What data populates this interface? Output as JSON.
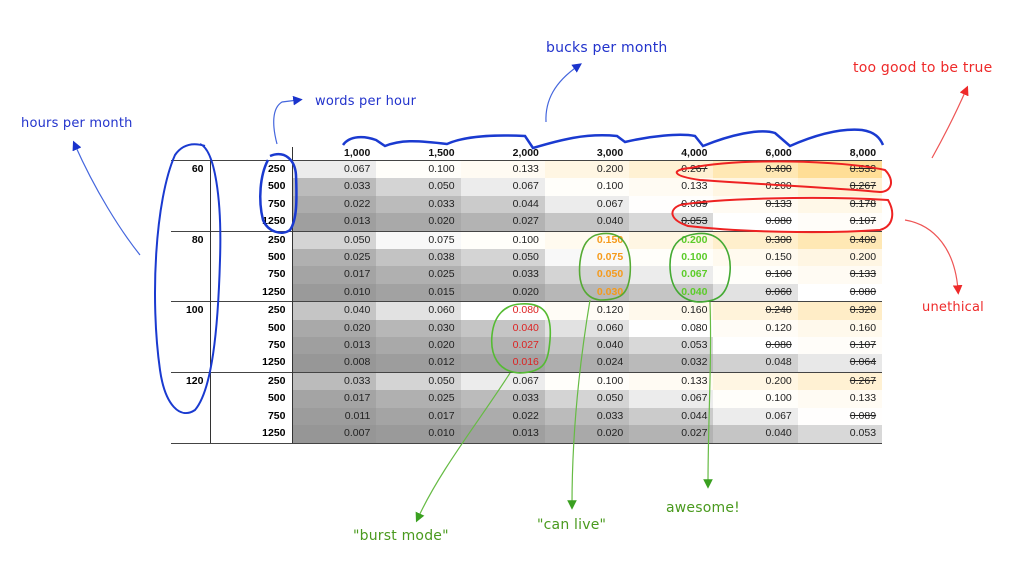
{
  "annotations": {
    "hours_per_month": "hours per month",
    "words_per_hour": "words per hour",
    "bucks_per_month": "bucks per month",
    "too_good": "too good to be true",
    "unethical": "unethical",
    "burst_mode": "\"burst mode\"",
    "can_live": "\"can live\"",
    "awesome": "awesome!"
  },
  "colors": {
    "annotation_blue": "#2233cc",
    "annotation_red": "#ee2a2a",
    "annotation_green": "#4a9a1e",
    "highlight_orange": "#f59a1b",
    "highlight_green": "#5ccc2a",
    "highlight_red": "#dd2222"
  },
  "chart_data": {
    "type": "table",
    "title": "",
    "row_header_1": "hours per month",
    "row_header_2": "words per hour",
    "column_header": "bucks per month",
    "columns": [
      "1,000",
      "1,500",
      "2,000",
      "3,000",
      "4,000",
      "6,000",
      "8,000"
    ],
    "groups": [
      {
        "hours": "60",
        "rows": [
          {
            "words": "250",
            "values": [
              "0.067",
              "0.100",
              "0.133",
              "0.200",
              "0.267",
              "0.400",
              "0.533"
            ]
          },
          {
            "words": "500",
            "values": [
              "0.033",
              "0.050",
              "0.067",
              "0.100",
              "0.133",
              "0.200",
              "0.267"
            ]
          },
          {
            "words": "750",
            "values": [
              "0.022",
              "0.033",
              "0.044",
              "0.067",
              "0.089",
              "0.133",
              "0.178"
            ]
          },
          {
            "words": "1250",
            "values": [
              "0.013",
              "0.020",
              "0.027",
              "0.040",
              "0.053",
              "0.080",
              "0.107"
            ]
          }
        ]
      },
      {
        "hours": "80",
        "rows": [
          {
            "words": "250",
            "values": [
              "0.050",
              "0.075",
              "0.100",
              "0.150",
              "0.200",
              "0.300",
              "0.400"
            ]
          },
          {
            "words": "500",
            "values": [
              "0.025",
              "0.038",
              "0.050",
              "0.075",
              "0.100",
              "0.150",
              "0.200"
            ]
          },
          {
            "words": "750",
            "values": [
              "0.017",
              "0.025",
              "0.033",
              "0.050",
              "0.067",
              "0.100",
              "0.133"
            ]
          },
          {
            "words": "1250",
            "values": [
              "0.010",
              "0.015",
              "0.020",
              "0.030",
              "0.040",
              "0.060",
              "0.080"
            ]
          }
        ]
      },
      {
        "hours": "100",
        "rows": [
          {
            "words": "250",
            "values": [
              "0.040",
              "0.060",
              "0.080",
              "0.120",
              "0.160",
              "0.240",
              "0.320"
            ]
          },
          {
            "words": "500",
            "values": [
              "0.020",
              "0.030",
              "0.040",
              "0.060",
              "0.080",
              "0.120",
              "0.160"
            ]
          },
          {
            "words": "750",
            "values": [
              "0.013",
              "0.020",
              "0.027",
              "0.040",
              "0.053",
              "0.080",
              "0.107"
            ]
          },
          {
            "words": "1250",
            "values": [
              "0.008",
              "0.012",
              "0.016",
              "0.024",
              "0.032",
              "0.048",
              "0.064"
            ]
          }
        ]
      },
      {
        "hours": "120",
        "rows": [
          {
            "words": "250",
            "values": [
              "0.033",
              "0.050",
              "0.067",
              "0.100",
              "0.133",
              "0.200",
              "0.267"
            ]
          },
          {
            "words": "500",
            "values": [
              "0.017",
              "0.025",
              "0.033",
              "0.050",
              "0.067",
              "0.100",
              "0.133"
            ]
          },
          {
            "words": "750",
            "values": [
              "0.011",
              "0.017",
              "0.022",
              "0.033",
              "0.044",
              "0.067",
              "0.089"
            ]
          },
          {
            "words": "1250",
            "values": [
              "0.007",
              "0.010",
              "0.013",
              "0.020",
              "0.027",
              "0.040",
              "0.053"
            ]
          }
        ]
      }
    ],
    "struck_through": [
      [
        0,
        0,
        4
      ],
      [
        0,
        0,
        5
      ],
      [
        0,
        0,
        6
      ],
      [
        0,
        1,
        6
      ],
      [
        0,
        2,
        4
      ],
      [
        0,
        2,
        5
      ],
      [
        0,
        2,
        6
      ],
      [
        0,
        3,
        4
      ],
      [
        0,
        3,
        5
      ],
      [
        0,
        3,
        6
      ],
      [
        1,
        0,
        5
      ],
      [
        1,
        0,
        6
      ],
      [
        1,
        2,
        5
      ],
      [
        1,
        2,
        6
      ],
      [
        1,
        3,
        5
      ],
      [
        1,
        3,
        6
      ],
      [
        2,
        0,
        5
      ],
      [
        2,
        0,
        6
      ],
      [
        2,
        2,
        5
      ],
      [
        2,
        2,
        6
      ],
      [
        2,
        3,
        6
      ],
      [
        3,
        0,
        6
      ],
      [
        3,
        2,
        6
      ]
    ],
    "highlighted": {
      "orange": [
        [
          1,
          0,
          3
        ],
        [
          1,
          1,
          3
        ],
        [
          1,
          2,
          3
        ],
        [
          1,
          3,
          3
        ]
      ],
      "green": [
        [
          1,
          0,
          4
        ],
        [
          1,
          1,
          4
        ],
        [
          1,
          2,
          4
        ],
        [
          1,
          3,
          4
        ]
      ],
      "red": [
        [
          2,
          0,
          2
        ],
        [
          2,
          1,
          2
        ],
        [
          2,
          2,
          2
        ],
        [
          2,
          3,
          2
        ]
      ]
    },
    "heat_scale": {
      "low": "#999999",
      "mid": "#ffffff",
      "high": "#fddf9a"
    }
  }
}
